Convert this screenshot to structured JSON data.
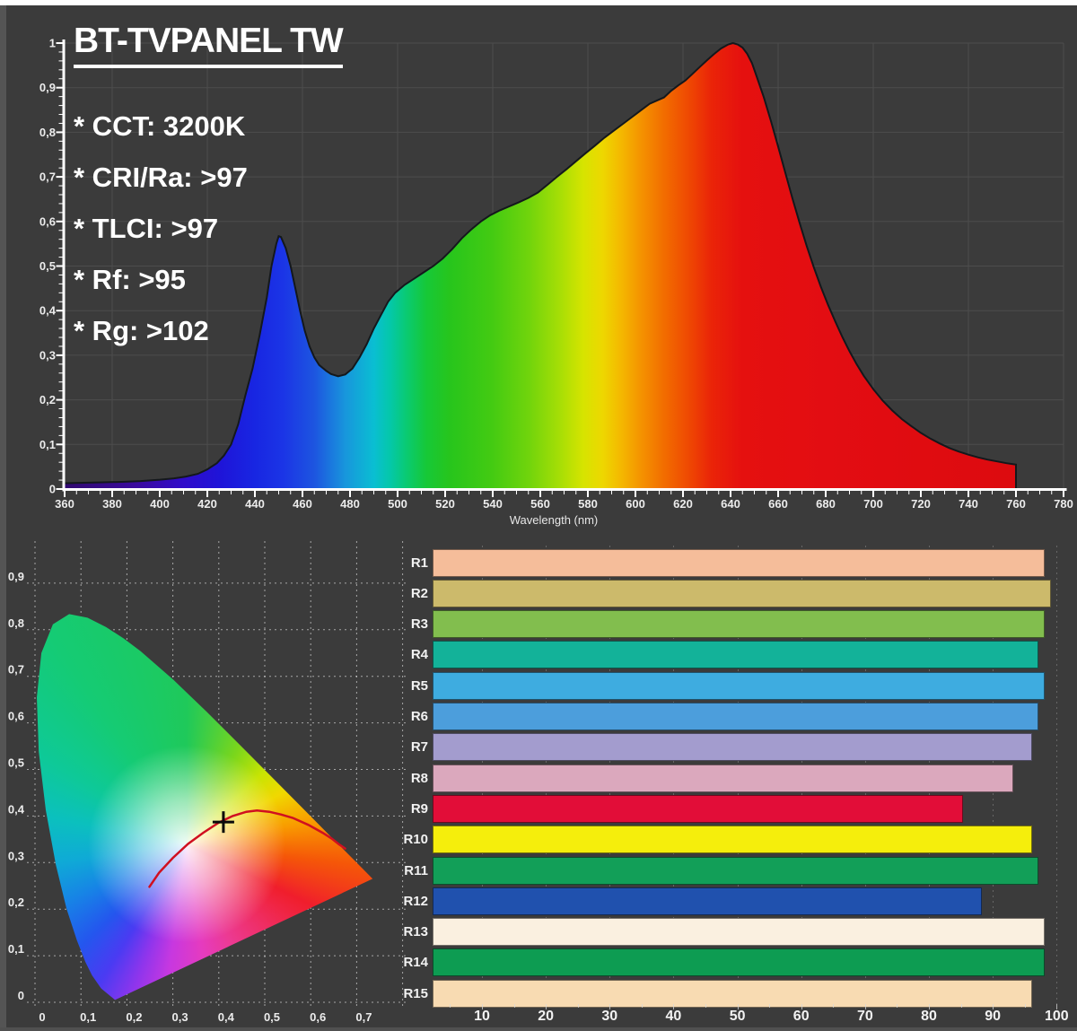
{
  "page": {
    "background": "#3b3b3b",
    "top_strip_color": "#ffffff"
  },
  "header": {
    "title": "BT-TVPANEL TW",
    "specs": [
      "* CCT: 3200K",
      "* CRI/Ra: >97",
      "* TLCI: >97",
      "* Rf: >95",
      "* Rg: >102"
    ]
  },
  "colors": {
    "axis": "#ffffff",
    "grid_solid": "#4d4d4d",
    "grid_dashed": "rgba(255,255,255,0.55)",
    "tick_label": "#ececec",
    "curve_outline": "#14181c",
    "planckian_locus": "#d01020",
    "marker_cross": "#0a0a0a"
  },
  "chart_data": [
    {
      "id": "spectral-power-distribution",
      "type": "area",
      "title": "BT-TVPANEL TW",
      "xlabel": "Wavelength (nm)",
      "ylabel": "",
      "xlim": [
        360,
        780
      ],
      "ylim": [
        0,
        1
      ],
      "grid": "on",
      "x_ticks": [
        "360",
        "380",
        "400",
        "420",
        "440",
        "460",
        "480",
        "500",
        "520",
        "540",
        "560",
        "580",
        "600",
        "620",
        "640",
        "660",
        "680",
        "700",
        "720",
        "740",
        "760",
        "780"
      ],
      "y_ticks": [
        "0",
        "0,1",
        "0,2",
        "0,3",
        "0,4",
        "0,5",
        "0,6",
        "0,7",
        "0,8",
        "0,9",
        "1"
      ],
      "points": [
        [
          360,
          0.013
        ],
        [
          368,
          0.014
        ],
        [
          376,
          0.015
        ],
        [
          384,
          0.016
        ],
        [
          392,
          0.018
        ],
        [
          400,
          0.021
        ],
        [
          406,
          0.024
        ],
        [
          411,
          0.028
        ],
        [
          416,
          0.034
        ],
        [
          420,
          0.044
        ],
        [
          424,
          0.058
        ],
        [
          427,
          0.075
        ],
        [
          430,
          0.1
        ],
        [
          433,
          0.145
        ],
        [
          436,
          0.21
        ],
        [
          439,
          0.27
        ],
        [
          442,
          0.345
        ],
        [
          445,
          0.43
        ],
        [
          447,
          0.5
        ],
        [
          449,
          0.55
        ],
        [
          450,
          0.567
        ],
        [
          451,
          0.565
        ],
        [
          453,
          0.54
        ],
        [
          455,
          0.5
        ],
        [
          457,
          0.45
        ],
        [
          459,
          0.4
        ],
        [
          461,
          0.355
        ],
        [
          463,
          0.32
        ],
        [
          465,
          0.295
        ],
        [
          467,
          0.278
        ],
        [
          470,
          0.265
        ],
        [
          472,
          0.258
        ],
        [
          475,
          0.253
        ],
        [
          478,
          0.257
        ],
        [
          481,
          0.27
        ],
        [
          484,
          0.295
        ],
        [
          487,
          0.325
        ],
        [
          490,
          0.36
        ],
        [
          493,
          0.39
        ],
        [
          496,
          0.42
        ],
        [
          499,
          0.44
        ],
        [
          503,
          0.458
        ],
        [
          507,
          0.472
        ],
        [
          511,
          0.486
        ],
        [
          515,
          0.5
        ],
        [
          519,
          0.517
        ],
        [
          523,
          0.538
        ],
        [
          527,
          0.562
        ],
        [
          531,
          0.582
        ],
        [
          535,
          0.6
        ],
        [
          539,
          0.614
        ],
        [
          543,
          0.625
        ],
        [
          547,
          0.634
        ],
        [
          551,
          0.643
        ],
        [
          555,
          0.653
        ],
        [
          559,
          0.665
        ],
        [
          563,
          0.682
        ],
        [
          567,
          0.7
        ],
        [
          571,
          0.717
        ],
        [
          575,
          0.735
        ],
        [
          579,
          0.753
        ],
        [
          583,
          0.77
        ],
        [
          587,
          0.788
        ],
        [
          591,
          0.804
        ],
        [
          595,
          0.82
        ],
        [
          599,
          0.836
        ],
        [
          603,
          0.852
        ],
        [
          606,
          0.864
        ],
        [
          609,
          0.871
        ],
        [
          612,
          0.878
        ],
        [
          615,
          0.893
        ],
        [
          618,
          0.905
        ],
        [
          621,
          0.916
        ],
        [
          624,
          0.931
        ],
        [
          627,
          0.946
        ],
        [
          630,
          0.961
        ],
        [
          633,
          0.975
        ],
        [
          636,
          0.988
        ],
        [
          639,
          0.997
        ],
        [
          641,
          1.0
        ],
        [
          643,
          0.997
        ],
        [
          645,
          0.99
        ],
        [
          647,
          0.976
        ],
        [
          649,
          0.955
        ],
        [
          651,
          0.925
        ],
        [
          654,
          0.878
        ],
        [
          657,
          0.825
        ],
        [
          660,
          0.768
        ],
        [
          663,
          0.71
        ],
        [
          666,
          0.652
        ],
        [
          669,
          0.597
        ],
        [
          672,
          0.545
        ],
        [
          675,
          0.497
        ],
        [
          678,
          0.453
        ],
        [
          681,
          0.413
        ],
        [
          684,
          0.376
        ],
        [
          687,
          0.341
        ],
        [
          690,
          0.309
        ],
        [
          693,
          0.28
        ],
        [
          696,
          0.254
        ],
        [
          700,
          0.224
        ],
        [
          704,
          0.198
        ],
        [
          708,
          0.176
        ],
        [
          712,
          0.157
        ],
        [
          716,
          0.141
        ],
        [
          720,
          0.126
        ],
        [
          724,
          0.113
        ],
        [
          728,
          0.102
        ],
        [
          732,
          0.092
        ],
        [
          736,
          0.084
        ],
        [
          740,
          0.077
        ],
        [
          744,
          0.071
        ],
        [
          748,
          0.066
        ],
        [
          752,
          0.062
        ],
        [
          756,
          0.058
        ],
        [
          760,
          0.055
        ]
      ],
      "gradient_stops": [
        [
          360,
          "#30096e"
        ],
        [
          390,
          "#3a0a9e"
        ],
        [
          410,
          "#300cca"
        ],
        [
          425,
          "#1f14d8"
        ],
        [
          440,
          "#1826e2"
        ],
        [
          452,
          "#1b35e6"
        ],
        [
          465,
          "#1d55e0"
        ],
        [
          478,
          "#1896dc"
        ],
        [
          490,
          "#0abed2"
        ],
        [
          497,
          "#04c8a8"
        ],
        [
          504,
          "#0aca70"
        ],
        [
          512,
          "#16c838"
        ],
        [
          522,
          "#27c51c"
        ],
        [
          540,
          "#44cb12"
        ],
        [
          555,
          "#70d40c"
        ],
        [
          568,
          "#a5de06"
        ],
        [
          578,
          "#d6e400"
        ],
        [
          586,
          "#edd800"
        ],
        [
          594,
          "#f4b800"
        ],
        [
          602,
          "#f49400"
        ],
        [
          612,
          "#f26d00"
        ],
        [
          622,
          "#ef4a02"
        ],
        [
          632,
          "#ea2408"
        ],
        [
          645,
          "#e5100f"
        ],
        [
          680,
          "#e30d12"
        ],
        [
          780,
          "#db0a0e"
        ]
      ]
    },
    {
      "id": "cie-1931-chromaticity",
      "type": "scatter",
      "xlim": [
        0,
        0.8
      ],
      "ylim": [
        0,
        0.9
      ],
      "grid": "dashed",
      "x_ticks": [
        "0",
        "0,1",
        "0,2",
        "0,3",
        "0,4",
        "0,5",
        "0,6",
        "0,7"
      ],
      "y_ticks": [
        "0",
        "0,1",
        "0,2",
        "0,3",
        "0,4",
        "0,5",
        "0,6",
        "0,7",
        "0,8",
        "0,9"
      ],
      "locus_points": [
        [
          0.249,
          0.248
        ],
        [
          0.27,
          0.278
        ],
        [
          0.3,
          0.31
        ],
        [
          0.333,
          0.34
        ],
        [
          0.366,
          0.364
        ],
        [
          0.4,
          0.386
        ],
        [
          0.43,
          0.4
        ],
        [
          0.46,
          0.409
        ],
        [
          0.483,
          0.412
        ],
        [
          0.51,
          0.409
        ],
        [
          0.536,
          0.403
        ],
        [
          0.561,
          0.396
        ],
        [
          0.595,
          0.381
        ],
        [
          0.626,
          0.364
        ],
        [
          0.645,
          0.352
        ],
        [
          0.662,
          0.339
        ],
        [
          0.675,
          0.33
        ]
      ],
      "marker": {
        "x": 0.41,
        "y": 0.387
      }
    },
    {
      "id": "cri-values",
      "type": "bar",
      "orientation": "horizontal",
      "categories": [
        "R1",
        "R2",
        "R3",
        "R4",
        "R5",
        "R6",
        "R7",
        "R8",
        "R9",
        "R10",
        "R11",
        "R12",
        "R13",
        "R14",
        "R15"
      ],
      "values": [
        98,
        99,
        98,
        97,
        98,
        97,
        96,
        93,
        85,
        96,
        97,
        88,
        98,
        98,
        96
      ],
      "bar_colors": [
        "#f5bd9a",
        "#ccba6b",
        "#82be4e",
        "#13b299",
        "#3eace0",
        "#4c9edc",
        "#a39cce",
        "#dba8bd",
        "#e20d38",
        "#f5ee0c",
        "#129f58",
        "#2051ae",
        "#faf0e0",
        "#0d9c52",
        "#f8dbb2"
      ],
      "xlim": [
        0,
        100
      ],
      "x_ticks": [
        "10",
        "20",
        "30",
        "40",
        "50",
        "60",
        "70",
        "80",
        "90",
        "100"
      ]
    }
  ]
}
